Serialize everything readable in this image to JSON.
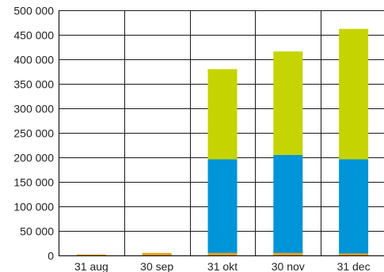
{
  "chart_data": {
    "type": "bar",
    "stacked": true,
    "categories": [
      "31 aug",
      "30 sep",
      "31 okt",
      "30 nov",
      "31 dec"
    ],
    "series": [
      {
        "color": "#e8a21c",
        "values": [
          2000,
          5000,
          5000,
          5000,
          4000
        ]
      },
      {
        "color": "#0094d8",
        "values": [
          0,
          0,
          191000,
          200000,
          192000
        ]
      },
      {
        "color": "#c5d400",
        "values": [
          0,
          0,
          184000,
          211000,
          266000
        ]
      }
    ],
    "ylim": [
      0,
      500000
    ],
    "yticks": [
      0,
      50000,
      100000,
      150000,
      200000,
      250000,
      300000,
      350000,
      400000,
      450000,
      500000
    ],
    "ytick_labels": [
      "0",
      "50 000",
      "100 000",
      "150 000",
      "200 000",
      "250 000",
      "300 000",
      "350 000",
      "400 000",
      "450 000",
      "500 000"
    ],
    "grid": {
      "horizontal": true,
      "vertical": true
    },
    "title": "",
    "xlabel": "",
    "ylabel": ""
  }
}
